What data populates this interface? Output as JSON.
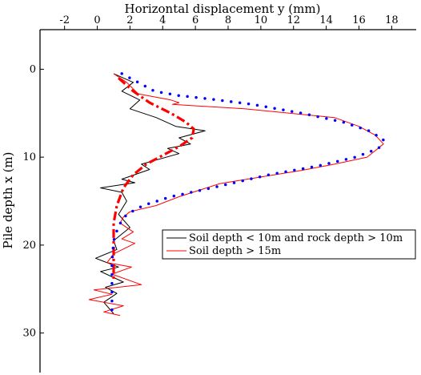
{
  "chart_data": {
    "type": "line",
    "xlabel": "Horizontal displacement y (mm)",
    "ylabel": "Pile depth x (m)",
    "xlim": [
      -3.5,
      19.5
    ],
    "ylim": [
      -4.5,
      34.5
    ],
    "x_ticks": [
      -2,
      0,
      2,
      4,
      6,
      8,
      10,
      12,
      14,
      16,
      18
    ],
    "y_ticks": [
      0,
      10,
      20,
      30
    ],
    "x_axis_position": "top",
    "y_axis_inverted": true,
    "grid": false,
    "legend_position": "center-right",
    "series": [
      {
        "name": "Soil depth < 10m and rock depth > 10m",
        "color": "#000000",
        "style": "solid",
        "points": [
          [
            1.0,
            0.5
          ],
          [
            2.2,
            1.5
          ],
          [
            1.5,
            2.5
          ],
          [
            2.6,
            3.5
          ],
          [
            2.0,
            4.5
          ],
          [
            3.6,
            5.5
          ],
          [
            4.8,
            6.5
          ],
          [
            6.6,
            7.0
          ],
          [
            5.0,
            7.8
          ],
          [
            5.7,
            8.5
          ],
          [
            4.3,
            9.0
          ],
          [
            5.0,
            9.6
          ],
          [
            2.7,
            10.8
          ],
          [
            3.2,
            11.4
          ],
          [
            1.5,
            12.5
          ],
          [
            2.3,
            12.9
          ],
          [
            0.2,
            13.5
          ],
          [
            1.5,
            14.0
          ],
          [
            1.8,
            15.0
          ],
          [
            1.3,
            16.5
          ],
          [
            2.0,
            18.0
          ],
          [
            1.0,
            19.5
          ],
          [
            1.2,
            20.5
          ],
          [
            -0.1,
            21.5
          ],
          [
            1.3,
            22.5
          ],
          [
            0.2,
            23.0
          ],
          [
            1.6,
            24.2
          ],
          [
            0.5,
            24.8
          ],
          [
            1.2,
            25.5
          ],
          [
            0.4,
            26.5
          ],
          [
            1.0,
            27.8
          ]
        ]
      },
      {
        "name": "Soil depth > 15m",
        "color": "#ff0000",
        "style": "solid",
        "points": [
          [
            1.0,
            0.5
          ],
          [
            1.8,
            1.5
          ],
          [
            2.5,
            2.8
          ],
          [
            4.5,
            3.5
          ],
          [
            5.0,
            3.8
          ],
          [
            4.6,
            4.0
          ],
          [
            9.0,
            4.5
          ],
          [
            14.5,
            5.5
          ],
          [
            16.0,
            6.5
          ],
          [
            17.0,
            7.5
          ],
          [
            17.5,
            8.5
          ],
          [
            16.5,
            10.0
          ],
          [
            14.5,
            10.8
          ],
          [
            12.5,
            11.5
          ],
          [
            7.5,
            13.0
          ],
          [
            5.0,
            14.5
          ],
          [
            3.6,
            15.5
          ],
          [
            2.0,
            16.2
          ],
          [
            1.6,
            16.8
          ],
          [
            1.4,
            17.5
          ],
          [
            2.2,
            18.5
          ],
          [
            1.5,
            19.3
          ],
          [
            2.3,
            19.8
          ],
          [
            1.0,
            21.0
          ],
          [
            0.6,
            22.0
          ],
          [
            2.1,
            22.5
          ],
          [
            0.9,
            23.3
          ],
          [
            2.7,
            24.5
          ],
          [
            -0.2,
            25.1
          ],
          [
            0.9,
            25.6
          ],
          [
            -0.5,
            26.2
          ],
          [
            1.6,
            26.9
          ],
          [
            0.4,
            27.6
          ],
          [
            1.4,
            28.0
          ]
        ]
      },
      {
        "color": "#0000ff",
        "style": "dotted",
        "points": [
          [
            1.5,
            0.5
          ],
          [
            2.5,
            1.5
          ],
          [
            3.5,
            2.5
          ],
          [
            5.0,
            3.0
          ],
          [
            6.5,
            3.3
          ],
          [
            9.5,
            4.0
          ],
          [
            12.5,
            5.0
          ],
          [
            15.0,
            6.0
          ],
          [
            16.6,
            7.0
          ],
          [
            17.5,
            8.0
          ],
          [
            17.2,
            9.0
          ],
          [
            15.8,
            10.0
          ],
          [
            13.5,
            11.0
          ],
          [
            10.5,
            12.0
          ],
          [
            7.0,
            13.5
          ],
          [
            4.5,
            14.5
          ],
          [
            2.8,
            15.5
          ],
          [
            1.8,
            16.5
          ],
          [
            1.3,
            17.8
          ],
          [
            1.0,
            19.5
          ],
          [
            0.9,
            22.0
          ],
          [
            0.9,
            25.0
          ],
          [
            0.9,
            28.0
          ]
        ]
      },
      {
        "color": "#ff0000",
        "style": "dashdot",
        "points": [
          [
            1.3,
            1.0
          ],
          [
            2.2,
            2.5
          ],
          [
            3.2,
            3.8
          ],
          [
            4.5,
            5.0
          ],
          [
            5.4,
            6.0
          ],
          [
            5.9,
            6.8
          ],
          [
            5.8,
            7.8
          ],
          [
            5.0,
            8.8
          ],
          [
            4.0,
            9.8
          ],
          [
            3.0,
            10.8
          ],
          [
            2.2,
            12.0
          ],
          [
            1.6,
            13.5
          ],
          [
            1.2,
            15.5
          ],
          [
            1.0,
            17.5
          ],
          [
            1.0,
            20.0
          ],
          [
            1.0,
            22.5
          ],
          [
            1.0,
            24.0
          ]
        ]
      }
    ]
  }
}
